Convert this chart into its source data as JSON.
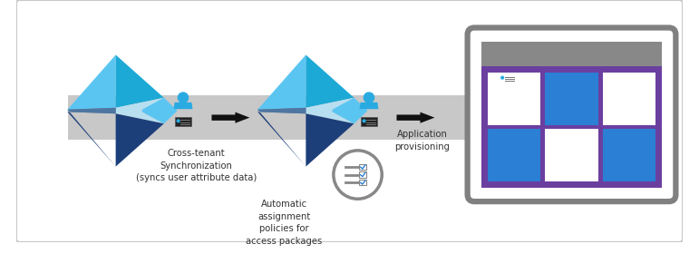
{
  "bg_color": "#ffffff",
  "border_color": "#c8c8c8",
  "gray_band_color": "#c8c8c8",
  "arrow_color": "#111111",
  "azure_light_blue": "#5bc5f2",
  "azure_mid_blue": "#1da9d6",
  "azure_dark_blue": "#1c3f7a",
  "azure_pale_blue": "#b8dff0",
  "azure_shadow": "#7faec8",
  "user_icon_color": "#29abe2",
  "label1": "Cross-tenant\nSynchronization\n(syncs user attribute data)",
  "label2": "Automatic\nassignment\npolicies for\naccess packages",
  "label3": "Application\nprovisioning",
  "app_box_border": "#808080",
  "app_header_color": "#888888",
  "app_purple": "#6b3fa0",
  "app_tile_blue": "#2b7fd4",
  "app_tile_white": "#ffffff",
  "checklist_border": "#888888",
  "checklist_line_color": "#888888",
  "checklist_check_color": "#2b7fd4"
}
